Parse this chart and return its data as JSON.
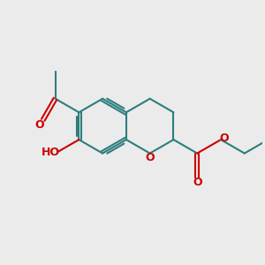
{
  "bg_color": "#ebebeb",
  "bond_color": "#2d7d7d",
  "oxygen_color": "#cc0000",
  "bond_width": 1.5,
  "fig_size": [
    3.0,
    3.0
  ],
  "dpi": 100,
  "xlim": [
    0,
    10
  ],
  "ylim": [
    0,
    10
  ]
}
